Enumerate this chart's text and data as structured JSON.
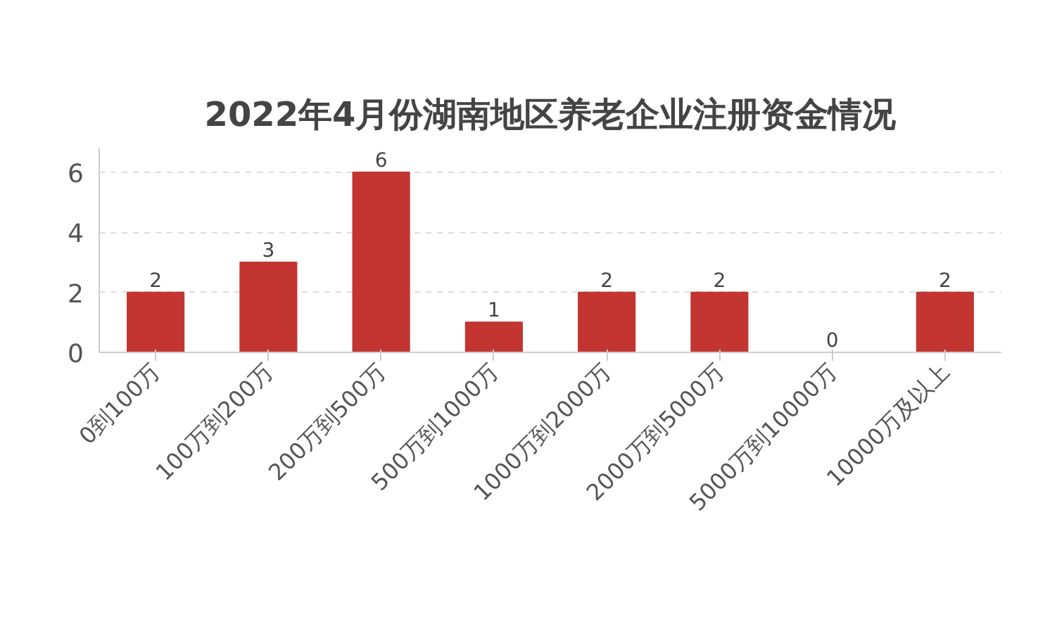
{
  "chart_data": {
    "type": "bar",
    "title": "2022年4月份湖南地区养老企业注册资金情况",
    "categories": [
      "0到100万",
      "100万到200万",
      "200万到500万",
      "500万到1000万",
      "1000万到2000万",
      "2000万到5000万",
      "5000万到10000万",
      "10000万及以上"
    ],
    "values": [
      2,
      3,
      6,
      1,
      2,
      2,
      0,
      2
    ],
    "color": "#c23531",
    "ylim": [
      0,
      6.8
    ],
    "yticks": [
      0,
      2,
      4,
      6
    ],
    "grid": "y",
    "data_labels": true
  }
}
